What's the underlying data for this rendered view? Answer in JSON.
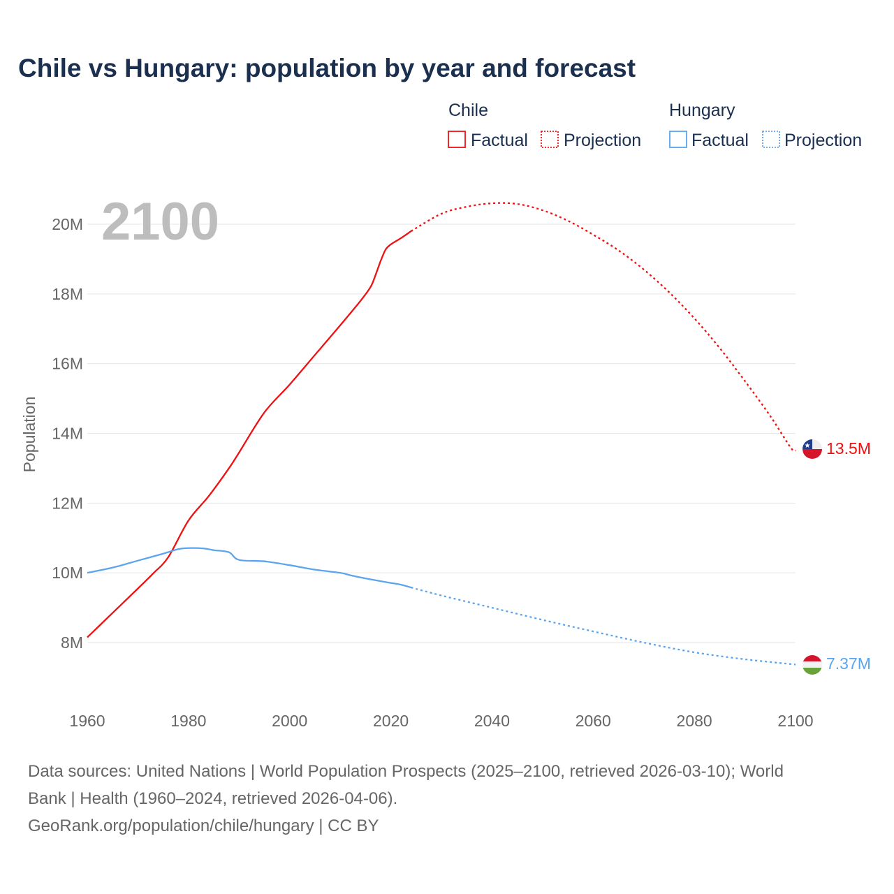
{
  "chart_data": {
    "type": "line",
    "title": "Chile vs Hungary: population by year and forecast",
    "ylabel": "Population",
    "xlabel": "",
    "xlim": [
      1960,
      2100
    ],
    "ylim": [
      7,
      21
    ],
    "x_ticks": [
      1960,
      1980,
      2000,
      2020,
      2040,
      2060,
      2080,
      2100
    ],
    "x_tick_labels": [
      "1960",
      "1980",
      "2000",
      "2020",
      "2040",
      "2060",
      "2080",
      "2100"
    ],
    "y_ticks": [
      8,
      10,
      12,
      14,
      16,
      18,
      20
    ],
    "y_tick_labels": [
      "8M",
      "10M",
      "12M",
      "14M",
      "16M",
      "18M",
      "20M"
    ],
    "grid": true,
    "year_display": "2100",
    "legend": {
      "placement": "top-right",
      "groups": [
        {
          "name": "Chile",
          "factual": "Factual",
          "projection": "Projection"
        },
        {
          "name": "Hungary",
          "factual": "Factual",
          "projection": "Projection"
        }
      ]
    },
    "series": [
      {
        "name": "Chile",
        "color": "#ee1111",
        "end_label": "13.5M",
        "flag": "chile-flag",
        "factual": {
          "x": [
            1960,
            1965,
            1970,
            1973,
            1976,
            1980,
            1984,
            1988,
            1990,
            1995,
            2000,
            2005,
            2010,
            2014,
            2016,
            2017,
            2018,
            2019,
            2020,
            2022,
            2024
          ],
          "y": [
            8.15,
            8.85,
            9.55,
            9.98,
            10.45,
            11.5,
            12.2,
            13.0,
            13.45,
            14.6,
            15.4,
            16.25,
            17.1,
            17.8,
            18.2,
            18.55,
            18.95,
            19.28,
            19.42,
            19.6,
            19.8
          ]
        },
        "projection": {
          "x": [
            2024,
            2030,
            2035,
            2040,
            2045,
            2050,
            2055,
            2060,
            2065,
            2070,
            2075,
            2080,
            2085,
            2090,
            2095,
            2099,
            2100
          ],
          "y": [
            19.8,
            20.3,
            20.5,
            20.6,
            20.58,
            20.4,
            20.1,
            19.7,
            19.25,
            18.7,
            18.05,
            17.3,
            16.45,
            15.5,
            14.5,
            13.6,
            13.5
          ]
        }
      },
      {
        "name": "Hungary",
        "color": "#5ba5ee",
        "end_label": "7.37M",
        "flag": "hungary-flag",
        "factual": {
          "x": [
            1960,
            1965,
            1970,
            1975,
            1978,
            1980,
            1983,
            1985,
            1988,
            1990,
            1995,
            2000,
            2005,
            2010,
            2012,
            2015,
            2018,
            2020,
            2022,
            2024
          ],
          "y": [
            10.0,
            10.15,
            10.35,
            10.55,
            10.68,
            10.71,
            10.7,
            10.65,
            10.59,
            10.37,
            10.33,
            10.22,
            10.09,
            10.0,
            9.93,
            9.84,
            9.76,
            9.71,
            9.66,
            9.58
          ]
        },
        "projection": {
          "x": [
            2024,
            2030,
            2040,
            2050,
            2060,
            2070,
            2080,
            2090,
            2100
          ],
          "y": [
            9.58,
            9.35,
            9.0,
            8.65,
            8.32,
            8.0,
            7.72,
            7.52,
            7.37
          ]
        }
      }
    ]
  },
  "footer": {
    "sources_line1": "Data sources: United Nations | World Population Prospects (2025–2100, retrieved 2026-03-10); World",
    "sources_line2": "Bank | Health (1960–2024, retrieved 2026-04-06).",
    "credit": "GeoRank.org/population/chile/hungary | CC BY"
  }
}
